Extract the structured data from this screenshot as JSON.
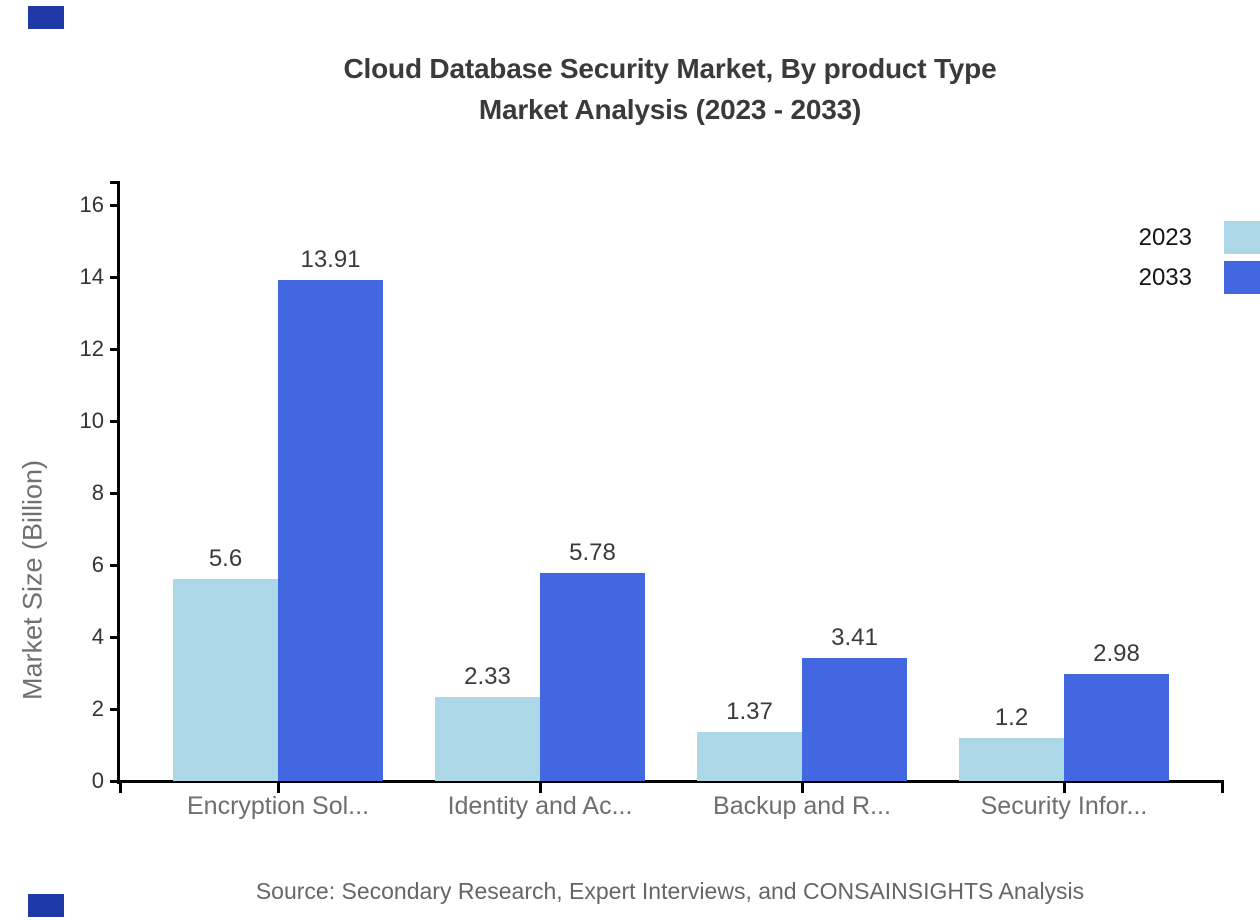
{
  "title": {
    "line1": "Cloud Database Security Market, By product Type",
    "line2": "Market Analysis (2023 - 2033)"
  },
  "legend": {
    "position": "top-right",
    "items": [
      {
        "label": "2023",
        "color": "#ABD7E6"
      },
      {
        "label": "2033",
        "color": "#4267E1"
      }
    ]
  },
  "source": "Source: Secondary Research, Expert Interviews, and CONSAINSIGHTS Analysis",
  "decorations": {
    "corner_square_color": "#2039A8"
  },
  "chart_data": {
    "type": "bar",
    "title": "Cloud Database Security Market, By product Type Market Analysis (2023 - 2033)",
    "categories": [
      "Encryption Sol...",
      "Identity and Ac...",
      "Backup and R...",
      "Security Infor..."
    ],
    "series": [
      {
        "name": "2023",
        "color": "#ABD7E6",
        "values": [
          5.6,
          2.33,
          1.37,
          1.2
        ]
      },
      {
        "name": "2033",
        "color": "#4267E1",
        "values": [
          13.91,
          5.78,
          3.41,
          2.98
        ]
      }
    ],
    "xlabel": "",
    "ylabel": "Market Size (Billion)",
    "ylim": [
      0,
      16.6
    ],
    "yticks": [
      0,
      2,
      4,
      6,
      8,
      10,
      12,
      14,
      16
    ],
    "grid": false,
    "value_labels": true,
    "legend_position": "top-right"
  }
}
